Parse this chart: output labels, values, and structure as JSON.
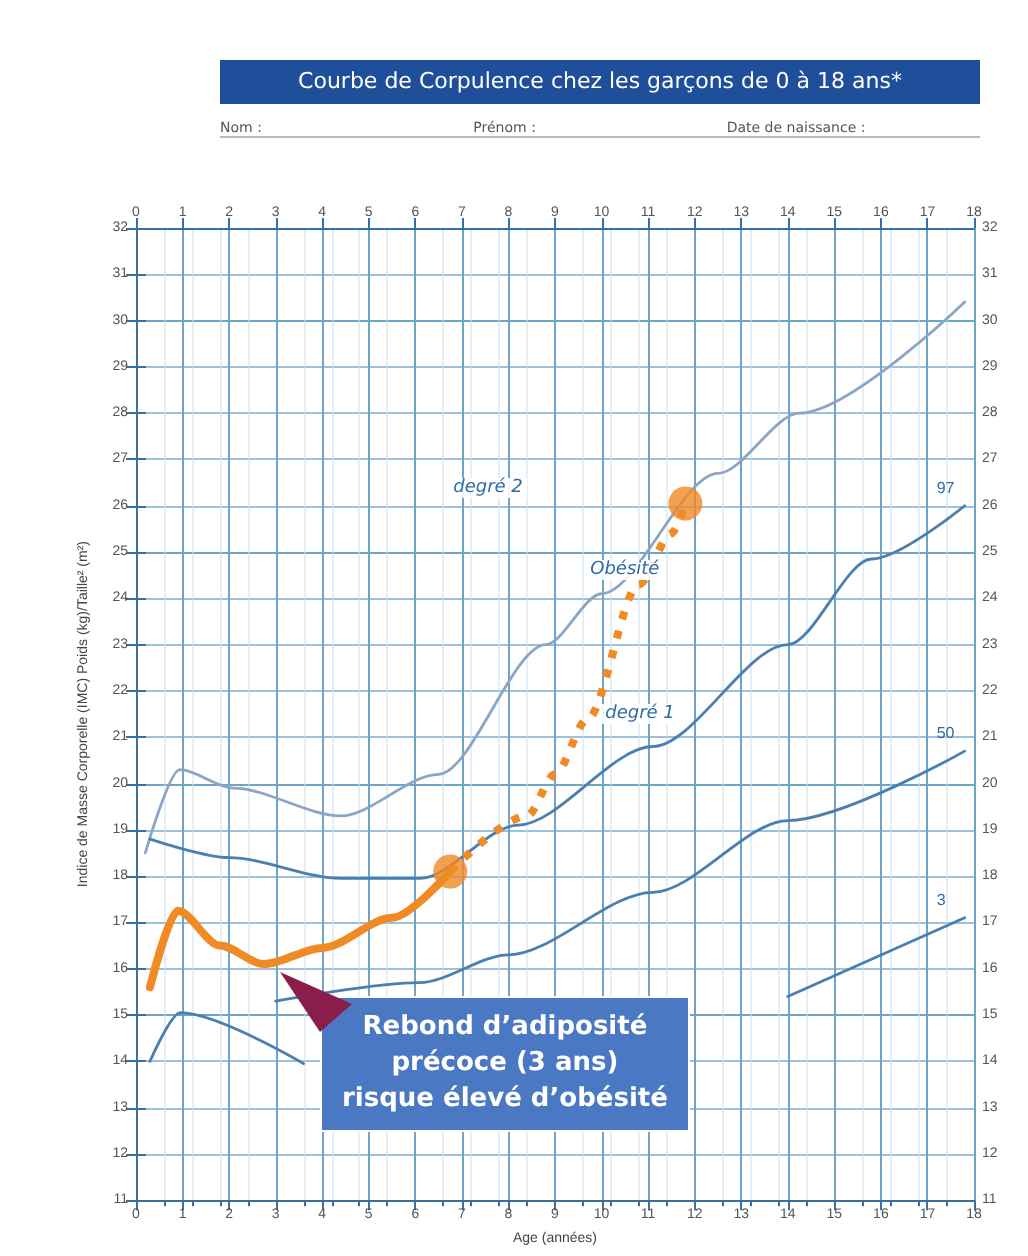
{
  "chart_data": {
    "type": "line",
    "title": "Courbe de Corpulence chez les garçons de 0 à 18 ans*",
    "xlabel": "Age (années)",
    "ylabel": "Indice de Masse Corporelle (IMC) Poids (kg)/Taille² (m²)",
    "xlim": [
      0,
      18
    ],
    "xticks": [
      0,
      1,
      2,
      3,
      4,
      5,
      6,
      7,
      8,
      9,
      10,
      11,
      12,
      13,
      14,
      15,
      16,
      17,
      18
    ],
    "x2lim": [
      0,
      18
    ],
    "x2ticks": [
      0,
      1,
      2,
      3,
      4,
      5,
      6,
      7,
      8,
      9,
      10,
      11,
      12,
      13,
      14,
      15,
      16,
      17,
      18
    ],
    "ylim": [
      11,
      32
    ],
    "yticks": [
      11,
      12,
      13,
      14,
      15,
      16,
      17,
      18,
      19,
      20,
      21,
      22,
      23,
      24,
      25,
      26,
      27,
      28,
      29,
      30,
      31,
      32
    ],
    "y2lim": [
      11,
      32
    ],
    "y2ticks": [
      11,
      12,
      13,
      14,
      15,
      16,
      17,
      18,
      19,
      20,
      21,
      22,
      23,
      24,
      25,
      26,
      27,
      28,
      29,
      30,
      31,
      32
    ],
    "grid": true,
    "legend": false,
    "series": [
      {
        "color": "#8aa6c4",
        "marker": "none",
        "x": [
          0.2,
          0.94,
          2.1,
          4.4,
          6.5,
          8.8,
          10,
          12.5,
          14.25,
          17.8
        ],
        "values": [
          18.5,
          20.3,
          19.9,
          19.3,
          20.2,
          23.0,
          24.1,
          26.7,
          28.0,
          30.4
        ]
      },
      {
        "name": "97",
        "color": "#4a7fb0",
        "marker": "none",
        "x": [
          0.3,
          2,
          4.4,
          6.1,
          8.2,
          11.1,
          14,
          15.8,
          17.8
        ],
        "values": [
          18.8,
          18.4,
          17.95,
          17.95,
          19.1,
          20.8,
          23.0,
          24.85,
          26.0
        ]
      },
      {
        "name": "50",
        "color": "#4a7fb0",
        "marker": "none",
        "x": [
          3,
          6.1,
          8,
          11.1,
          14,
          17.8
        ],
        "values": [
          15.3,
          15.7,
          16.3,
          17.65,
          19.2,
          20.7
        ]
      },
      {
        "name": "3",
        "color": "#4a7fb0",
        "marker": "none",
        "x": [
          0.3,
          0.95,
          3.6,
          6,
          9,
          11,
          14,
          17.8
        ],
        "values": [
          14.0,
          15.05,
          13.95,
          null,
          null,
          null,
          15.4,
          17.1
        ]
      },
      {
        "color": "#f08a24",
        "marker": "none",
        "line_style": "solid",
        "x": [
          0.3,
          0.9,
          1.8,
          2.75,
          4,
          5.5,
          6.75
        ],
        "values": [
          15.6,
          17.25,
          16.5,
          16.1,
          16.45,
          17.1,
          18.1
        ]
      },
      {
        "color": "#f08a24",
        "marker": "none",
        "line_style": "dotted",
        "x": [
          6.75,
          8.4,
          9,
          9.7,
          10.8,
          11.5,
          11.8
        ],
        "values": [
          18.1,
          19.3,
          20.2,
          21.4,
          24.3,
          25.4,
          26.05
        ]
      },
      {
        "type": "scatter",
        "color": "#f08a24",
        "marker": "circle",
        "x": [
          6.75,
          11.8
        ],
        "values": [
          18.1,
          26.05
        ]
      }
    ],
    "annotations": [
      "Nom :",
      "Prénom :",
      "Date de naissance :",
      "degré 2",
      "Rebond d’adiposité\nprécoce (3 ans)\nrisque élevé d’obésité",
      "degré 1",
      {
        "text": "Obésité",
        "x": 10.5,
        "y": 24.6
      }
    ]
  }
}
